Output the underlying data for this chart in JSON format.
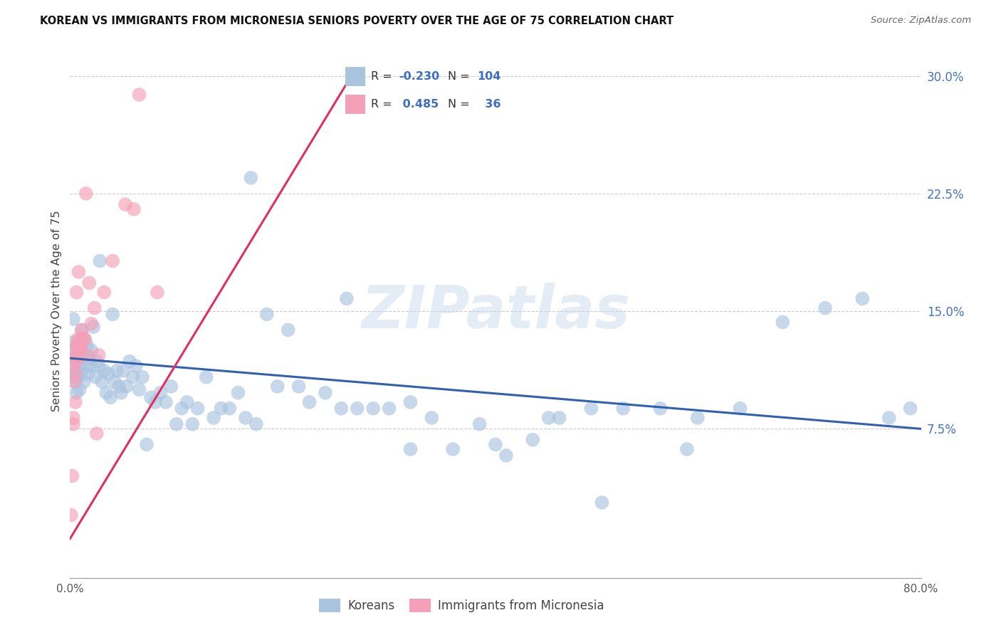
{
  "title": "KOREAN VS IMMIGRANTS FROM MICRONESIA SENIORS POVERTY OVER THE AGE OF 75 CORRELATION CHART",
  "source": "Source: ZipAtlas.com",
  "ylabel": "Seniors Poverty Over the Age of 75",
  "xlim": [
    0.0,
    0.8
  ],
  "ylim": [
    -0.02,
    0.32
  ],
  "ytick_positions": [
    0.075,
    0.15,
    0.225,
    0.3
  ],
  "ytick_labels": [
    "7.5%",
    "15.0%",
    "22.5%",
    "30.0%"
  ],
  "xtick_positions": [
    0.0,
    0.2,
    0.4,
    0.6,
    0.8
  ],
  "xtick_labels": [
    "0.0%",
    "",
    "",
    "",
    "80.0%"
  ],
  "korean_R": -0.23,
  "korean_N": 104,
  "micronesia_R": 0.485,
  "micronesia_N": 36,
  "korean_color": "#aac4e0",
  "micronesia_color": "#f4a0b8",
  "korean_line_color": "#3060b0",
  "micronesia_line_color": "#e03060",
  "watermark": "ZIPatlas",
  "korean_x": [
    0.001,
    0.002,
    0.002,
    0.003,
    0.003,
    0.004,
    0.004,
    0.005,
    0.005,
    0.006,
    0.006,
    0.007,
    0.007,
    0.008,
    0.008,
    0.009,
    0.009,
    0.01,
    0.01,
    0.011,
    0.011,
    0.012,
    0.013,
    0.014,
    0.015,
    0.016,
    0.017,
    0.018,
    0.019,
    0.02,
    0.022,
    0.024,
    0.025,
    0.027,
    0.028,
    0.03,
    0.032,
    0.034,
    0.036,
    0.038,
    0.04,
    0.042,
    0.044,
    0.046,
    0.048,
    0.05,
    0.053,
    0.056,
    0.059,
    0.062,
    0.065,
    0.068,
    0.072,
    0.076,
    0.08,
    0.085,
    0.09,
    0.095,
    0.1,
    0.105,
    0.11,
    0.115,
    0.12,
    0.128,
    0.135,
    0.142,
    0.15,
    0.158,
    0.165,
    0.175,
    0.185,
    0.195,
    0.205,
    0.215,
    0.225,
    0.24,
    0.255,
    0.27,
    0.285,
    0.3,
    0.32,
    0.34,
    0.36,
    0.385,
    0.41,
    0.435,
    0.46,
    0.49,
    0.52,
    0.555,
    0.59,
    0.63,
    0.67,
    0.71,
    0.745,
    0.77,
    0.79,
    0.17,
    0.26,
    0.32,
    0.4,
    0.45,
    0.5,
    0.58
  ],
  "korean_y": [
    0.125,
    0.13,
    0.11,
    0.145,
    0.12,
    0.115,
    0.108,
    0.125,
    0.105,
    0.118,
    0.098,
    0.112,
    0.125,
    0.108,
    0.12,
    0.1,
    0.115,
    0.11,
    0.128,
    0.138,
    0.13,
    0.12,
    0.105,
    0.132,
    0.115,
    0.128,
    0.11,
    0.12,
    0.115,
    0.125,
    0.14,
    0.108,
    0.118,
    0.115,
    0.182,
    0.105,
    0.112,
    0.098,
    0.11,
    0.095,
    0.148,
    0.105,
    0.112,
    0.102,
    0.098,
    0.112,
    0.102,
    0.118,
    0.108,
    0.115,
    0.1,
    0.108,
    0.065,
    0.095,
    0.092,
    0.098,
    0.092,
    0.102,
    0.078,
    0.088,
    0.092,
    0.078,
    0.088,
    0.108,
    0.082,
    0.088,
    0.088,
    0.098,
    0.082,
    0.078,
    0.148,
    0.102,
    0.138,
    0.102,
    0.092,
    0.098,
    0.088,
    0.088,
    0.088,
    0.088,
    0.092,
    0.082,
    0.062,
    0.078,
    0.058,
    0.068,
    0.082,
    0.088,
    0.088,
    0.088,
    0.082,
    0.088,
    0.143,
    0.152,
    0.158,
    0.082,
    0.088,
    0.235,
    0.158,
    0.062,
    0.065,
    0.082,
    0.028,
    0.062
  ],
  "micronesia_x": [
    0.001,
    0.002,
    0.003,
    0.003,
    0.004,
    0.005,
    0.005,
    0.006,
    0.006,
    0.007,
    0.007,
    0.008,
    0.008,
    0.009,
    0.01,
    0.011,
    0.012,
    0.014,
    0.016,
    0.018,
    0.02,
    0.023,
    0.027,
    0.032,
    0.04,
    0.052,
    0.065,
    0.082,
    0.003,
    0.004,
    0.006,
    0.008,
    0.01,
    0.015,
    0.025,
    0.06
  ],
  "micronesia_y": [
    0.02,
    0.045,
    0.082,
    0.078,
    0.105,
    0.092,
    0.11,
    0.118,
    0.128,
    0.132,
    0.125,
    0.128,
    0.122,
    0.132,
    0.128,
    0.138,
    0.133,
    0.132,
    0.122,
    0.168,
    0.142,
    0.152,
    0.122,
    0.162,
    0.182,
    0.218,
    0.288,
    0.162,
    0.115,
    0.12,
    0.162,
    0.175,
    0.128,
    0.225,
    0.072,
    0.215
  ]
}
